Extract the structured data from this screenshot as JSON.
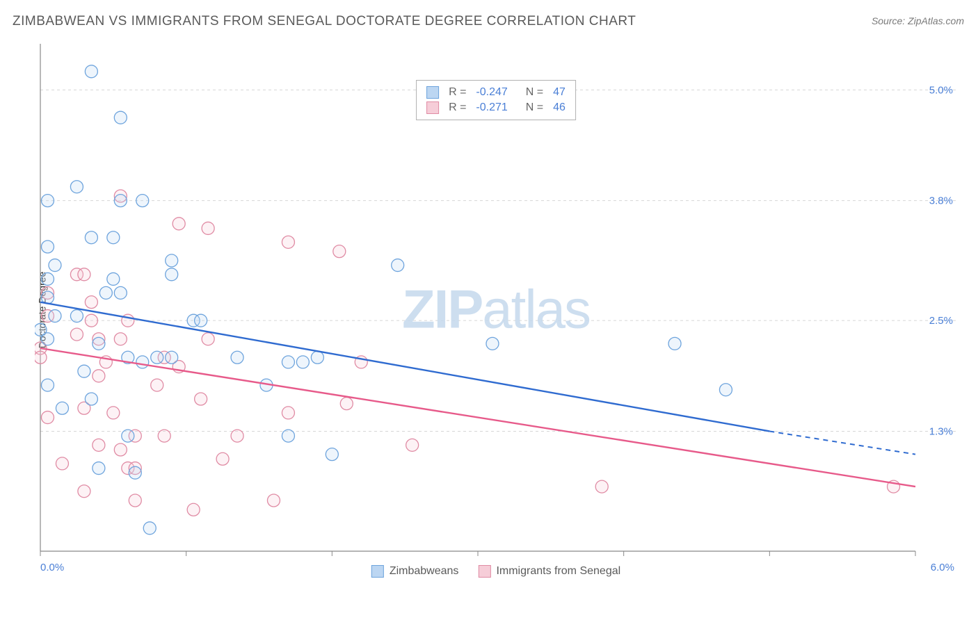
{
  "title": "ZIMBABWEAN VS IMMIGRANTS FROM SENEGAL DOCTORATE DEGREE CORRELATION CHART",
  "source": "Source: ZipAtlas.com",
  "y_axis_label": "Doctorate Degree",
  "watermark_bold": "ZIP",
  "watermark_light": "atlas",
  "chart": {
    "type": "scatter",
    "xlim": [
      0.0,
      6.0
    ],
    "ylim": [
      0.0,
      5.5
    ],
    "x_ticks": [
      0.0,
      1.0,
      2.0,
      3.0,
      4.0,
      5.0,
      6.0
    ],
    "x_tick_labels": [
      "0.0%",
      "",
      "",
      "",
      "",
      "",
      "6.0%"
    ],
    "y_grid": [
      1.3,
      2.5,
      3.8,
      5.0
    ],
    "y_tick_labels": [
      "1.3%",
      "2.5%",
      "3.8%",
      "5.0%"
    ],
    "grid_color": "#d6d6d6",
    "axis_color": "#888888",
    "tick_label_color": "#4a7fd6",
    "background_color": "#ffffff",
    "marker_radius": 9,
    "marker_stroke_width": 1.3,
    "marker_fill_opacity": 0.25,
    "series": [
      {
        "name": "Zimbabweans",
        "fill": "#bcd6f2",
        "stroke": "#6ea4dd",
        "line_color": "#2f6bd0",
        "trend": {
          "x1": 0.0,
          "y1": 2.7,
          "x2": 5.0,
          "y2": 1.3,
          "dash_to_x": 6.0,
          "dash_to_y": 1.05
        },
        "stats": {
          "R": "-0.247",
          "N": "47"
        },
        "points": [
          [
            0.35,
            5.2
          ],
          [
            0.55,
            4.7
          ],
          [
            0.05,
            3.8
          ],
          [
            0.55,
            3.8
          ],
          [
            0.7,
            3.8
          ],
          [
            0.35,
            3.4
          ],
          [
            0.5,
            3.4
          ],
          [
            0.05,
            3.3
          ],
          [
            0.9,
            3.15
          ],
          [
            0.1,
            3.1
          ],
          [
            0.05,
            2.95
          ],
          [
            0.5,
            2.95
          ],
          [
            0.45,
            2.8
          ],
          [
            0.55,
            2.8
          ],
          [
            0.9,
            3.0
          ],
          [
            0.1,
            2.55
          ],
          [
            0.25,
            2.55
          ],
          [
            0.05,
            2.75
          ],
          [
            0.0,
            2.4
          ],
          [
            0.05,
            2.3
          ],
          [
            0.6,
            2.1
          ],
          [
            0.8,
            2.1
          ],
          [
            0.9,
            2.1
          ],
          [
            0.7,
            2.05
          ],
          [
            0.3,
            1.95
          ],
          [
            0.05,
            1.8
          ],
          [
            1.05,
            2.5
          ],
          [
            1.1,
            2.5
          ],
          [
            1.35,
            2.1
          ],
          [
            1.55,
            1.8
          ],
          [
            1.7,
            2.05
          ],
          [
            1.8,
            2.05
          ],
          [
            1.9,
            2.1
          ],
          [
            2.45,
            3.1
          ],
          [
            2.0,
            1.05
          ],
          [
            1.7,
            1.25
          ],
          [
            3.1,
            2.25
          ],
          [
            0.75,
            0.25
          ],
          [
            0.65,
            0.85
          ],
          [
            0.35,
            1.65
          ],
          [
            4.35,
            2.25
          ],
          [
            4.7,
            1.75
          ],
          [
            0.4,
            0.9
          ],
          [
            0.15,
            1.55
          ],
          [
            0.6,
            1.25
          ],
          [
            0.25,
            3.95
          ],
          [
            0.4,
            2.25
          ]
        ]
      },
      {
        "name": "Immigrants from Senegal",
        "fill": "#f6cdd8",
        "stroke": "#e08ba4",
        "line_color": "#e75a8a",
        "trend": {
          "x1": 0.0,
          "y1": 2.2,
          "x2": 6.0,
          "y2": 0.7
        },
        "stats": {
          "R": "-0.271",
          "N": "46"
        },
        "points": [
          [
            0.55,
            3.85
          ],
          [
            0.95,
            3.55
          ],
          [
            1.15,
            3.5
          ],
          [
            1.7,
            3.35
          ],
          [
            2.05,
            3.25
          ],
          [
            0.25,
            3.0
          ],
          [
            0.3,
            3.0
          ],
          [
            0.35,
            2.7
          ],
          [
            0.05,
            2.55
          ],
          [
            0.35,
            2.5
          ],
          [
            0.6,
            2.5
          ],
          [
            0.4,
            2.3
          ],
          [
            0.55,
            2.3
          ],
          [
            0.0,
            2.2
          ],
          [
            0.0,
            2.1
          ],
          [
            0.85,
            2.1
          ],
          [
            0.95,
            2.0
          ],
          [
            0.4,
            1.9
          ],
          [
            0.8,
            1.8
          ],
          [
            1.1,
            1.65
          ],
          [
            0.3,
            1.55
          ],
          [
            0.5,
            1.5
          ],
          [
            0.05,
            1.45
          ],
          [
            0.65,
            1.25
          ],
          [
            0.85,
            1.25
          ],
          [
            0.4,
            1.15
          ],
          [
            0.55,
            1.1
          ],
          [
            1.35,
            1.25
          ],
          [
            0.15,
            0.95
          ],
          [
            0.6,
            0.9
          ],
          [
            0.65,
            0.9
          ],
          [
            0.3,
            0.65
          ],
          [
            0.65,
            0.55
          ],
          [
            1.05,
            0.45
          ],
          [
            1.6,
            0.55
          ],
          [
            1.15,
            2.3
          ],
          [
            1.7,
            1.5
          ],
          [
            1.25,
            1.0
          ],
          [
            2.1,
            1.6
          ],
          [
            2.2,
            2.05
          ],
          [
            2.55,
            1.15
          ],
          [
            3.85,
            0.7
          ],
          [
            5.85,
            0.7
          ],
          [
            0.05,
            2.8
          ],
          [
            0.45,
            2.05
          ],
          [
            0.25,
            2.35
          ]
        ]
      }
    ]
  },
  "legend_bottom": [
    {
      "label": "Zimbabweans",
      "fill": "#bcd6f2",
      "stroke": "#6ea4dd"
    },
    {
      "label": "Immigrants from Senegal",
      "fill": "#f6cdd8",
      "stroke": "#e08ba4"
    }
  ]
}
